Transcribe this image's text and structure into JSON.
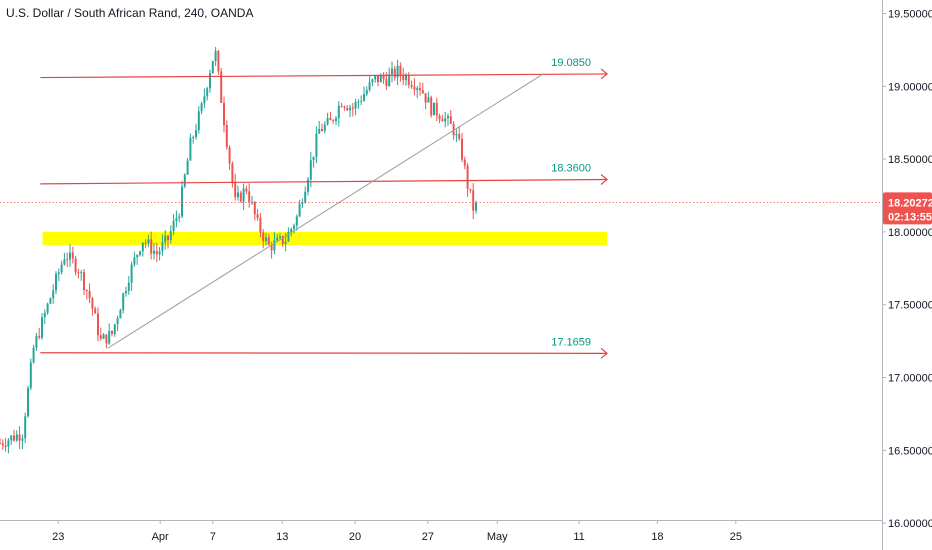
{
  "header": {
    "title": "U.S. Dollar / South African Rand, 240, OANDA"
  },
  "colors": {
    "up": "#26a69a",
    "down": "#ef5350",
    "level_line": "#e84343",
    "trend_line": "#9e9e9e",
    "zone": "#ffff00",
    "level_label": "#089981",
    "price_tag": "#ef5350",
    "axis": "#b2b5be"
  },
  "chart_data": {
    "type": "candlestick",
    "title": "U.S. Dollar / South African Rand, 240, OANDA",
    "ylim": [
      16.0,
      19.8
    ],
    "xlim": [
      0,
      78
    ],
    "y_ticks": [
      {
        "v": 16.0,
        "label": "16.00000"
      },
      {
        "v": 16.5,
        "label": "16.50000"
      },
      {
        "v": 17.0,
        "label": "17.00000"
      },
      {
        "v": 17.5,
        "label": "17.50000"
      },
      {
        "v": 18.0,
        "label": "18.00000"
      },
      {
        "v": 18.5,
        "label": "18.50000"
      },
      {
        "v": 19.0,
        "label": "19.00000"
      },
      {
        "v": 19.5,
        "label": "19.50000"
      }
    ],
    "x_ticks": [
      {
        "d": 5.2,
        "label": "23"
      },
      {
        "d": 14.3,
        "label": "Apr"
      },
      {
        "d": 19.0,
        "label": "7"
      },
      {
        "d": 25.2,
        "label": "13"
      },
      {
        "d": 31.7,
        "label": "20"
      },
      {
        "d": 38.2,
        "label": "27"
      },
      {
        "d": 44.4,
        "label": "May"
      },
      {
        "d": 51.7,
        "label": "11"
      },
      {
        "d": 58.7,
        "label": "18"
      },
      {
        "d": 65.7,
        "label": "25"
      }
    ],
    "close_path": [
      [
        0,
        16.55
      ],
      [
        2,
        16.62
      ],
      [
        3,
        17.2
      ],
      [
        4.5,
        17.55
      ],
      [
        5.8,
        17.85
      ],
      [
        7,
        17.75
      ],
      [
        8,
        17.55
      ],
      [
        9,
        17.25
      ],
      [
        10,
        17.3
      ],
      [
        11.5,
        17.7
      ],
      [
        12.7,
        17.95
      ],
      [
        14,
        17.85
      ],
      [
        15,
        17.95
      ],
      [
        16,
        18.15
      ],
      [
        17,
        18.6
      ],
      [
        18,
        18.85
      ],
      [
        18.7,
        19.1
      ],
      [
        19.2,
        19.25
      ],
      [
        19.6,
        19.0
      ],
      [
        20.3,
        18.6
      ],
      [
        21,
        18.2
      ],
      [
        22,
        18.3
      ],
      [
        23,
        18.05
      ],
      [
        24,
        17.9
      ],
      [
        25.5,
        17.95
      ],
      [
        26.5,
        18.1
      ],
      [
        27.5,
        18.4
      ],
      [
        28.5,
        18.7
      ],
      [
        29.5,
        18.75
      ],
      [
        30.5,
        18.9
      ],
      [
        31.5,
        18.85
      ],
      [
        32.5,
        18.95
      ],
      [
        33.5,
        19.05
      ],
      [
        34.5,
        19.05
      ],
      [
        35.5,
        19.1
      ],
      [
        36.5,
        19.05
      ],
      [
        37.5,
        19.0
      ],
      [
        38.5,
        18.85
      ],
      [
        39.5,
        18.8
      ],
      [
        40.5,
        18.7
      ],
      [
        41.2,
        18.55
      ],
      [
        41.8,
        18.3
      ],
      [
        42.3,
        18.15
      ],
      [
        42.7,
        18.2
      ]
    ],
    "levels": [
      {
        "label": "19.0850",
        "x1": 3.6,
        "y1": 19.06,
        "x2": 54.2,
        "y2": 19.085
      },
      {
        "label": "18.3600",
        "x1": 3.6,
        "y1": 18.33,
        "x2": 54.2,
        "y2": 18.36
      },
      {
        "label": "17.1659",
        "x1": 3.6,
        "y1": 17.17,
        "x2": 54.2,
        "y2": 17.1659
      }
    ],
    "trendline": {
      "x1": 9.6,
      "y1": 17.2,
      "x2": 48.5,
      "y2": 19.085
    },
    "zone": {
      "x1": 3.8,
      "x2": 54.2,
      "y_top": 18.0,
      "y_bottom": 17.91
    },
    "last_price": {
      "value": 18.20272,
      "label": "18.20272",
      "countdown": "02:13:55"
    }
  }
}
